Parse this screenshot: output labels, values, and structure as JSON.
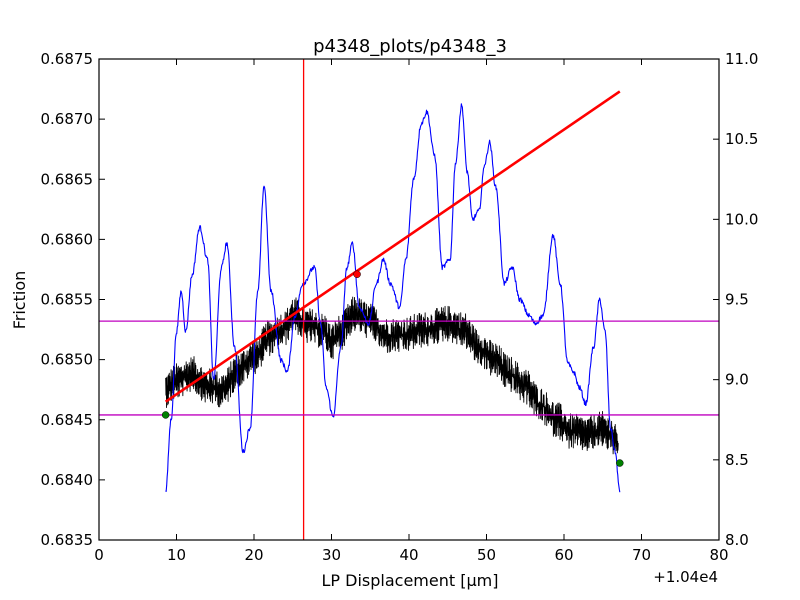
{
  "chart_data": {
    "type": "line",
    "title": "p4348_plots/p4348_3",
    "xlabel": "LP Displacement [μm]",
    "ylabel": "Friction",
    "x_offset_label": "+1.04e4",
    "xlim": [
      0,
      80
    ],
    "ylim_left": [
      0.6835,
      0.6875
    ],
    "ylim_right": [
      8.0,
      11.0
    ],
    "x_ticks": [
      "0",
      "10",
      "20",
      "30",
      "40",
      "50",
      "60",
      "70",
      "80"
    ],
    "y_ticks_left": [
      "0.6835",
      "0.6840",
      "0.6845",
      "0.6850",
      "0.6855",
      "0.6860",
      "0.6865",
      "0.6870",
      "0.6875"
    ],
    "y_ticks_right": [
      "8.0",
      "8.5",
      "9.0",
      "9.5",
      "10.0",
      "10.5",
      "11.0"
    ],
    "grid": false,
    "colors": {
      "friction": "#000000",
      "right_axis_series": "#0000ff",
      "fit_line": "#ff0000",
      "vertical_marker": "#ff0000",
      "horizontal_markers": "#bf00bf",
      "endpoints": "#008000"
    },
    "series": [
      {
        "axis": "left",
        "color": "#000000",
        "noise": 0.00025,
        "points": [
          [
            8.6,
            0.68475
          ],
          [
            10,
            0.68482
          ],
          [
            12,
            0.68488
          ],
          [
            14,
            0.68478
          ],
          [
            16,
            0.68475
          ],
          [
            18,
            0.68492
          ],
          [
            20,
            0.68502
          ],
          [
            22,
            0.68518
          ],
          [
            24,
            0.68526
          ],
          [
            25,
            0.68538
          ],
          [
            27,
            0.68528
          ],
          [
            29,
            0.68524
          ],
          [
            30,
            0.68515
          ],
          [
            31,
            0.68522
          ],
          [
            33,
            0.68538
          ],
          [
            35,
            0.68532
          ],
          [
            37,
            0.6852
          ],
          [
            39,
            0.6852
          ],
          [
            42,
            0.68525
          ],
          [
            45,
            0.6853
          ],
          [
            47,
            0.68525
          ],
          [
            49,
            0.6851
          ],
          [
            51,
            0.685
          ],
          [
            53,
            0.68488
          ],
          [
            55,
            0.68478
          ],
          [
            57,
            0.68462
          ],
          [
            59,
            0.6845
          ],
          [
            61,
            0.6844
          ],
          [
            63,
            0.68438
          ],
          [
            65,
            0.68442
          ],
          [
            66,
            0.68438
          ],
          [
            67,
            0.68428
          ]
        ]
      },
      {
        "axis": "right",
        "color": "#0000ff",
        "noise": 0.03,
        "points": [
          [
            8.6,
            8.3
          ],
          [
            9.3,
            8.75
          ],
          [
            10,
            9.3
          ],
          [
            10.6,
            9.55
          ],
          [
            11.2,
            9.3
          ],
          [
            12,
            9.65
          ],
          [
            13,
            9.95
          ],
          [
            14,
            9.75
          ],
          [
            14.8,
            9.0
          ],
          [
            15.8,
            9.7
          ],
          [
            16.5,
            9.85
          ],
          [
            17.5,
            9.2
          ],
          [
            18.6,
            8.55
          ],
          [
            19.5,
            8.7
          ],
          [
            20.5,
            9.55
          ],
          [
            21.3,
            10.21
          ],
          [
            22.2,
            9.55
          ],
          [
            23.5,
            9.12
          ],
          [
            24.3,
            9.05
          ],
          [
            25.3,
            9.4
          ],
          [
            26.3,
            9.6
          ],
          [
            27.8,
            9.7
          ],
          [
            28.6,
            9.35
          ],
          [
            29.3,
            8.95
          ],
          [
            30.2,
            8.77
          ],
          [
            31.2,
            9.2
          ],
          [
            32,
            9.7
          ],
          [
            32.7,
            9.85
          ],
          [
            33.6,
            9.45
          ],
          [
            34.8,
            9.35
          ],
          [
            35.8,
            9.6
          ],
          [
            36.7,
            9.75
          ],
          [
            37.6,
            9.6
          ],
          [
            38.8,
            9.45
          ],
          [
            39.6,
            9.75
          ],
          [
            40.6,
            10.25
          ],
          [
            41.6,
            10.6
          ],
          [
            42.3,
            10.67
          ],
          [
            43.3,
            10.4
          ],
          [
            44.3,
            9.7
          ],
          [
            45.3,
            9.75
          ],
          [
            46,
            10.35
          ],
          [
            46.8,
            10.71
          ],
          [
            47.5,
            10.3
          ],
          [
            48.2,
            10.0
          ],
          [
            49,
            10.05
          ],
          [
            49.8,
            10.35
          ],
          [
            50.4,
            10.48
          ],
          [
            51.2,
            10.2
          ],
          [
            52.3,
            9.6
          ],
          [
            53.3,
            9.7
          ],
          [
            54.3,
            9.5
          ],
          [
            55.5,
            9.4
          ],
          [
            56.3,
            9.35
          ],
          [
            57.3,
            9.4
          ],
          [
            58.6,
            9.9
          ],
          [
            59.5,
            9.6
          ],
          [
            60.5,
            9.1
          ],
          [
            61.2,
            9.05
          ],
          [
            62,
            8.95
          ],
          [
            62.8,
            8.85
          ],
          [
            63.8,
            9.2
          ],
          [
            64.6,
            9.5
          ],
          [
            65.3,
            9.3
          ],
          [
            66,
            8.7
          ],
          [
            66.6,
            8.55
          ],
          [
            67.2,
            8.3
          ]
        ]
      },
      {
        "axis": "left",
        "color": "#ff0000",
        "points": [
          [
            8.6,
            0.68465
          ],
          [
            67.2,
            0.68723
          ]
        ]
      }
    ],
    "markers": [
      {
        "axis": "left",
        "x": 8.6,
        "y": 0.68454,
        "color": "#008000"
      },
      {
        "axis": "left",
        "x": 33.3,
        "y": 0.68571,
        "color": "#ff0000"
      },
      {
        "axis": "left",
        "x": 67.2,
        "y": 0.68414,
        "color": "#008000"
      }
    ],
    "vertical_lines": [
      26.4
    ],
    "horizontal_lines_left": [
      0.68532,
      0.68454
    ]
  }
}
